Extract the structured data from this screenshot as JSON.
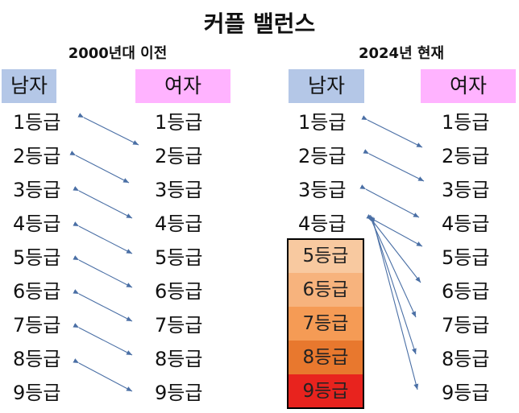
{
  "title": "커플 밸런스",
  "left_panel": {
    "subtitle": "2000년대 이전",
    "men_header": "남자",
    "women_header": "여자",
    "grades": [
      "1등급",
      "2등급",
      "3등급",
      "4등급",
      "5등급",
      "6등급",
      "7등급",
      "8등급",
      "9등급"
    ]
  },
  "right_panel": {
    "subtitle": "2024년 현재",
    "men_header": "남자",
    "women_header": "여자",
    "men_grades": [
      "1등급",
      "2등급",
      "3등급",
      "4등급"
    ],
    "men_lower_grades": [
      "5등급",
      "6등급",
      "7등급",
      "8등급",
      "9등급"
    ],
    "women_grades": [
      "1등급",
      "2등급",
      "3등급",
      "4등급",
      "5등급",
      "6등급",
      "7등급",
      "8등급",
      "9등급"
    ]
  },
  "colors": {
    "men_header": "#b4c7e7",
    "women_header": "#ffb3ff",
    "arrow": "#4a6fa5",
    "grade_5": "#f8c9a0",
    "grade_6": "#f7b37d",
    "grade_7": "#f59b55",
    "grade_8": "#e8782e",
    "grade_9": "#e8231e"
  }
}
